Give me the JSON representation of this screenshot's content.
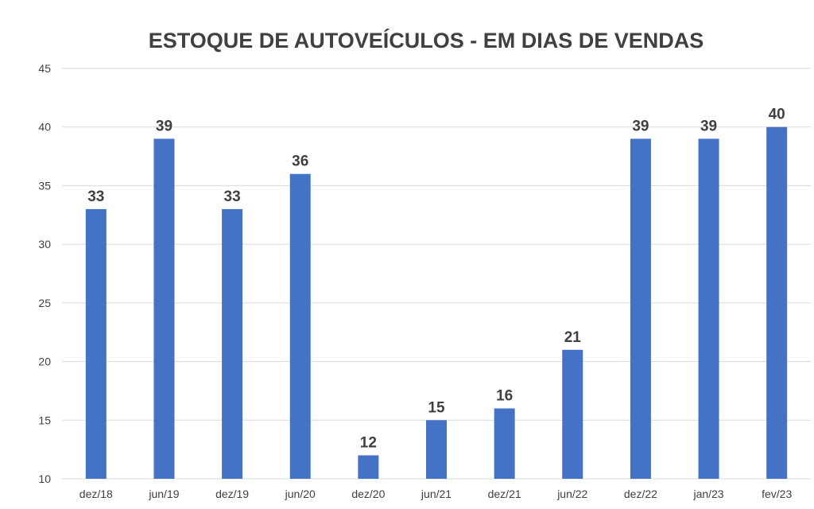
{
  "chart_data": {
    "type": "bar",
    "title": "ESTOQUE DE AUTOVEÍCULOS - EM DIAS DE VENDAS",
    "categories": [
      "dez/18",
      "jun/19",
      "dez/19",
      "jun/20",
      "dez/20",
      "jun/21",
      "dez/21",
      "jun/22",
      "dez/22",
      "jan/23",
      "fev/23"
    ],
    "values": [
      33,
      39,
      33,
      36,
      12,
      15,
      16,
      21,
      39,
      39,
      40
    ],
    "ylim": [
      10,
      45
    ],
    "yticks": [
      10,
      15,
      20,
      25,
      30,
      35,
      40,
      45
    ],
    "grid": true,
    "legend": "none",
    "bar_color": "#4472c4",
    "text_color": "#404040",
    "grid_color": "#d9d9d9"
  }
}
